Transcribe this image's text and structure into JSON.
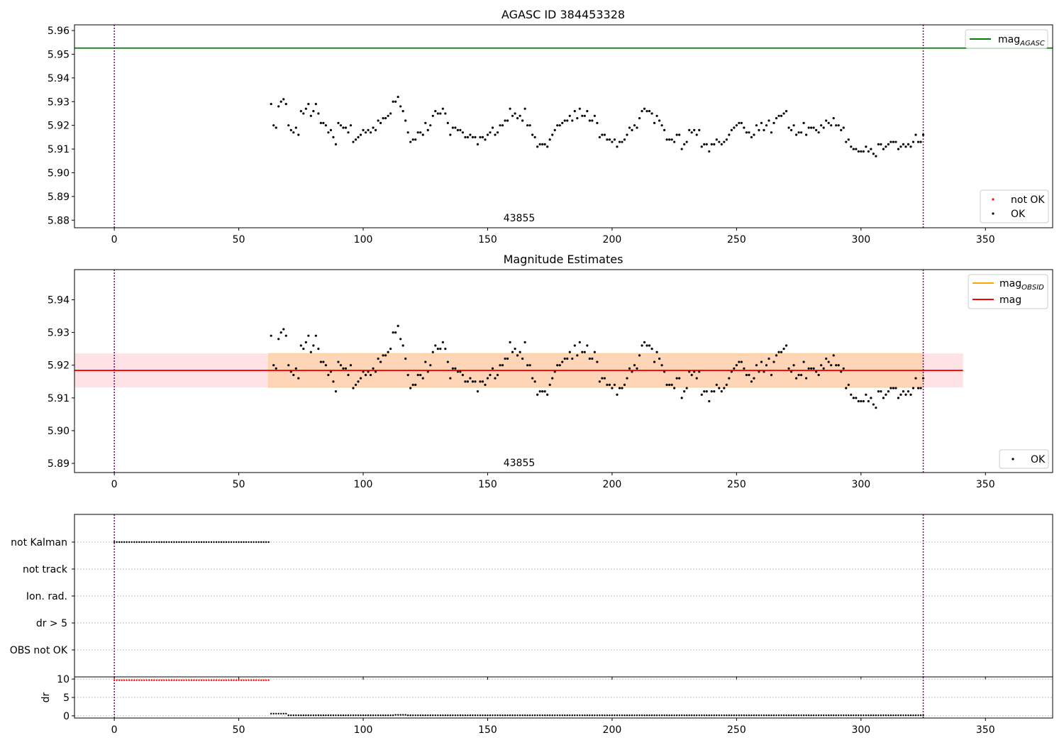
{
  "chart_data": [
    {
      "type": "scatter",
      "title": "AGASC ID 384453328",
      "xlim": [
        -16,
        377
      ],
      "ylim": [
        5.8768,
        5.9624
      ],
      "xticks": [
        0,
        50,
        100,
        150,
        200,
        250,
        300,
        350
      ],
      "xtick_labels": [
        "0",
        "50",
        "100",
        "150",
        "200",
        "250",
        "300",
        "350"
      ],
      "yticks": [
        5.88,
        5.89,
        5.9,
        5.91,
        5.92,
        5.93,
        5.94,
        5.95,
        5.96
      ],
      "ytick_labels": [
        "5.88",
        "5.89",
        "5.90",
        "5.91",
        "5.92",
        "5.93",
        "5.94",
        "5.95",
        "5.96"
      ],
      "vlines": [
        0,
        325
      ],
      "hline": {
        "value": 5.9526,
        "name": "mag",
        "subscript": "AGASC",
        "color": "#008000"
      },
      "annotation": {
        "text": "43855",
        "x": 162
      },
      "series": [
        {
          "name": "not OK",
          "color": "#ff0000",
          "values": []
        },
        {
          "name": "OK",
          "color": "#000000",
          "values": "ok_points"
        }
      ],
      "legends": {
        "line_legend": "top-right",
        "point_legend": "bottom-right"
      }
    },
    {
      "type": "scatter",
      "title": "Magnitude Estimates",
      "xlim": [
        -16,
        377
      ],
      "ylim": [
        5.8872,
        5.9492
      ],
      "xticks": [
        0,
        50,
        100,
        150,
        200,
        250,
        300,
        350
      ],
      "xtick_labels": [
        "0",
        "50",
        "100",
        "150",
        "200",
        "250",
        "300",
        "350"
      ],
      "yticks": [
        5.89,
        5.9,
        5.91,
        5.92,
        5.93,
        5.94
      ],
      "ytick_labels": [
        "5.89",
        "5.90",
        "5.91",
        "5.92",
        "5.93",
        "5.94"
      ],
      "vlines": [
        0,
        325
      ],
      "mag_obsid": {
        "name": "mag",
        "subscript": "OBSID",
        "color": "#ffa500",
        "value": 5.9184,
        "band": [
          5.9132,
          5.9236
        ],
        "x_range": [
          62,
          325
        ]
      },
      "mag": {
        "name": "mag",
        "color": "#ff0000",
        "value": 5.9184,
        "band": [
          5.9132,
          5.9236
        ],
        "x_range": [
          -16,
          341
        ]
      },
      "annotation": {
        "text": "43855",
        "x": 162
      },
      "series": [
        {
          "name": "OK",
          "color": "#000000",
          "values": "ok_points"
        }
      ],
      "legends": {
        "line_legend": "top-right",
        "point_legend": "bottom-right"
      }
    },
    {
      "type": "scatter",
      "title": "",
      "xlim": [
        -16,
        377
      ],
      "category_labels": [
        "not Kalman",
        "not track",
        "Ion. rad.",
        "dr > 5",
        "OBS not OK"
      ],
      "flagged": {
        "category": "not Kalman",
        "x_range": [
          0,
          62
        ]
      },
      "vlines": [
        0,
        325
      ]
    },
    {
      "type": "scatter",
      "title": "",
      "ylabel": "dr",
      "xlim": [
        -16,
        377
      ],
      "ylim": [
        -0.6,
        10.6
      ],
      "yticks": [
        0,
        5,
        10
      ],
      "ytick_labels": [
        "0",
        "5",
        "10"
      ],
      "xticks": [
        0,
        50,
        100,
        150,
        200,
        250,
        300,
        350
      ],
      "xtick_labels": [
        "0",
        "50",
        "100",
        "150",
        "200",
        "250",
        "300",
        "350"
      ],
      "vlines": [
        0,
        325
      ],
      "series": [
        {
          "name": "not OK",
          "color": "#ff0000",
          "x_range": [
            0,
            62
          ],
          "value": 9.7
        },
        {
          "name": "OK",
          "color": "#000000",
          "x_range": [
            62,
            325
          ]
        }
      ]
    }
  ],
  "ok_points": [
    [
      63,
      5.929
    ],
    [
      64,
      5.92
    ],
    [
      65,
      5.919
    ],
    [
      66,
      5.928
    ],
    [
      67,
      5.93
    ],
    [
      68,
      5.931
    ],
    [
      69,
      5.929
    ],
    [
      70,
      5.92
    ],
    [
      71,
      5.918
    ],
    [
      72,
      5.917
    ],
    [
      73,
      5.919
    ],
    [
      74,
      5.916
    ],
    [
      75,
      5.926
    ],
    [
      76,
      5.925
    ],
    [
      77,
      5.927
    ],
    [
      78,
      5.929
    ],
    [
      79,
      5.924
    ],
    [
      80,
      5.926
    ],
    [
      81,
      5.929
    ],
    [
      82,
      5.925
    ],
    [
      83,
      5.921
    ],
    [
      84,
      5.921
    ],
    [
      85,
      5.92
    ],
    [
      86,
      5.917
    ],
    [
      87,
      5.918
    ],
    [
      88,
      5.915
    ],
    [
      89,
      5.912
    ],
    [
      90,
      5.921
    ],
    [
      91,
      5.92
    ],
    [
      92,
      5.919
    ],
    [
      93,
      5.919
    ],
    [
      94,
      5.917
    ],
    [
      95,
      5.92
    ],
    [
      96,
      5.913
    ],
    [
      97,
      5.914
    ],
    [
      98,
      5.915
    ],
    [
      99,
      5.916
    ],
    [
      100,
      5.918
    ],
    [
      101,
      5.917
    ],
    [
      102,
      5.918
    ],
    [
      103,
      5.917
    ],
    [
      104,
      5.919
    ],
    [
      105,
      5.918
    ],
    [
      106,
      5.922
    ],
    [
      107,
      5.921
    ],
    [
      108,
      5.923
    ],
    [
      109,
      5.923
    ],
    [
      110,
      5.924
    ],
    [
      111,
      5.925
    ],
    [
      112,
      5.93
    ],
    [
      113,
      5.93
    ],
    [
      114,
      5.932
    ],
    [
      115,
      5.928
    ],
    [
      116,
      5.926
    ],
    [
      117,
      5.922
    ],
    [
      118,
      5.917
    ],
    [
      119,
      5.913
    ],
    [
      120,
      5.914
    ],
    [
      121,
      5.914
    ],
    [
      122,
      5.917
    ],
    [
      123,
      5.917
    ],
    [
      124,
      5.916
    ],
    [
      125,
      5.921
    ],
    [
      126,
      5.918
    ],
    [
      127,
      5.92
    ],
    [
      128,
      5.924
    ],
    [
      129,
      5.926
    ],
    [
      130,
      5.925
    ],
    [
      131,
      5.925
    ],
    [
      132,
      5.927
    ],
    [
      133,
      5.925
    ],
    [
      134,
      5.921
    ],
    [
      135,
      5.916
    ],
    [
      136,
      5.919
    ],
    [
      137,
      5.919
    ],
    [
      138,
      5.918
    ],
    [
      139,
      5.918
    ],
    [
      140,
      5.917
    ],
    [
      141,
      5.915
    ],
    [
      142,
      5.915
    ],
    [
      143,
      5.916
    ],
    [
      144,
      5.915
    ],
    [
      145,
      5.915
    ],
    [
      146,
      5.912
    ],
    [
      147,
      5.915
    ],
    [
      148,
      5.915
    ],
    [
      149,
      5.914
    ],
    [
      150,
      5.916
    ],
    [
      151,
      5.917
    ],
    [
      152,
      5.919
    ],
    [
      153,
      5.916
    ],
    [
      154,
      5.917
    ],
    [
      155,
      5.92
    ],
    [
      156,
      5.92
    ],
    [
      157,
      5.922
    ],
    [
      158,
      5.922
    ],
    [
      159,
      5.927
    ],
    [
      160,
      5.924
    ],
    [
      161,
      5.925
    ],
    [
      162,
      5.923
    ],
    [
      163,
      5.924
    ],
    [
      164,
      5.922
    ],
    [
      165,
      5.927
    ],
    [
      166,
      5.92
    ],
    [
      167,
      5.92
    ],
    [
      168,
      5.916
    ],
    [
      169,
      5.915
    ],
    [
      170,
      5.911
    ],
    [
      171,
      5.912
    ],
    [
      172,
      5.912
    ],
    [
      173,
      5.912
    ],
    [
      174,
      5.911
    ],
    [
      175,
      5.914
    ],
    [
      176,
      5.916
    ],
    [
      177,
      5.918
    ],
    [
      178,
      5.92
    ],
    [
      179,
      5.92
    ],
    [
      180,
      5.921
    ],
    [
      181,
      5.922
    ],
    [
      182,
      5.922
    ],
    [
      183,
      5.924
    ],
    [
      184,
      5.922
    ],
    [
      185,
      5.926
    ],
    [
      186,
      5.923
    ],
    [
      187,
      5.927
    ],
    [
      188,
      5.924
    ],
    [
      189,
      5.924
    ],
    [
      190,
      5.926
    ],
    [
      191,
      5.922
    ],
    [
      192,
      5.922
    ],
    [
      193,
      5.924
    ],
    [
      194,
      5.921
    ],
    [
      195,
      5.915
    ],
    [
      196,
      5.916
    ],
    [
      197,
      5.916
    ],
    [
      198,
      5.914
    ],
    [
      199,
      5.914
    ],
    [
      200,
      5.913
    ],
    [
      201,
      5.914
    ],
    [
      202,
      5.911
    ],
    [
      203,
      5.913
    ],
    [
      204,
      5.913
    ],
    [
      205,
      5.914
    ],
    [
      206,
      5.916
    ],
    [
      207,
      5.919
    ],
    [
      208,
      5.918
    ],
    [
      209,
      5.92
    ],
    [
      210,
      5.919
    ],
    [
      211,
      5.923
    ],
    [
      212,
      5.926
    ],
    [
      213,
      5.927
    ],
    [
      214,
      5.926
    ],
    [
      215,
      5.926
    ],
    [
      216,
      5.925
    ],
    [
      217,
      5.921
    ],
    [
      218,
      5.924
    ],
    [
      219,
      5.922
    ],
    [
      220,
      5.92
    ],
    [
      221,
      5.918
    ],
    [
      222,
      5.914
    ],
    [
      223,
      5.914
    ],
    [
      224,
      5.914
    ],
    [
      225,
      5.913
    ],
    [
      226,
      5.916
    ],
    [
      227,
      5.916
    ],
    [
      228,
      5.91
    ],
    [
      229,
      5.912
    ],
    [
      230,
      5.913
    ],
    [
      231,
      5.918
    ],
    [
      232,
      5.917
    ],
    [
      233,
      5.918
    ],
    [
      234,
      5.916
    ],
    [
      235,
      5.918
    ],
    [
      236,
      5.911
    ],
    [
      237,
      5.912
    ],
    [
      238,
      5.912
    ],
    [
      239,
      5.909
    ],
    [
      240,
      5.912
    ],
    [
      241,
      5.912
    ],
    [
      242,
      5.914
    ],
    [
      243,
      5.913
    ],
    [
      244,
      5.912
    ],
    [
      245,
      5.913
    ],
    [
      246,
      5.914
    ],
    [
      247,
      5.916
    ],
    [
      248,
      5.918
    ],
    [
      249,
      5.919
    ],
    [
      250,
      5.92
    ],
    [
      251,
      5.921
    ],
    [
      252,
      5.921
    ],
    [
      253,
      5.919
    ],
    [
      254,
      5.917
    ],
    [
      255,
      5.917
    ],
    [
      256,
      5.915
    ],
    [
      257,
      5.916
    ],
    [
      258,
      5.92
    ],
    [
      259,
      5.918
    ],
    [
      260,
      5.921
    ],
    [
      261,
      5.918
    ],
    [
      262,
      5.92
    ],
    [
      263,
      5.922
    ],
    [
      264,
      5.917
    ],
    [
      265,
      5.921
    ],
    [
      266,
      5.923
    ],
    [
      267,
      5.924
    ],
    [
      268,
      5.924
    ],
    [
      269,
      5.925
    ],
    [
      270,
      5.926
    ],
    [
      271,
      5.919
    ],
    [
      272,
      5.918
    ],
    [
      273,
      5.92
    ],
    [
      274,
      5.916
    ],
    [
      275,
      5.917
    ],
    [
      276,
      5.917
    ],
    [
      277,
      5.921
    ],
    [
      278,
      5.916
    ],
    [
      279,
      5.919
    ],
    [
      280,
      5.919
    ],
    [
      281,
      5.919
    ],
    [
      282,
      5.918
    ],
    [
      283,
      5.917
    ],
    [
      284,
      5.92
    ],
    [
      285,
      5.919
    ],
    [
      286,
      5.922
    ],
    [
      287,
      5.921
    ],
    [
      288,
      5.92
    ],
    [
      289,
      5.923
    ],
    [
      290,
      5.92
    ],
    [
      291,
      5.92
    ],
    [
      292,
      5.918
    ],
    [
      293,
      5.919
    ],
    [
      294,
      5.913
    ],
    [
      295,
      5.914
    ],
    [
      296,
      5.911
    ],
    [
      297,
      5.91
    ],
    [
      298,
      5.91
    ],
    [
      299,
      5.909
    ],
    [
      300,
      5.909
    ],
    [
      301,
      5.909
    ],
    [
      302,
      5.911
    ],
    [
      303,
      5.909
    ],
    [
      304,
      5.91
    ],
    [
      305,
      5.908
    ],
    [
      306,
      5.907
    ],
    [
      307,
      5.912
    ],
    [
      308,
      5.912
    ],
    [
      309,
      5.91
    ],
    [
      310,
      5.911
    ],
    [
      311,
      5.912
    ],
    [
      312,
      5.913
    ],
    [
      313,
      5.913
    ],
    [
      314,
      5.913
    ],
    [
      315,
      5.91
    ],
    [
      316,
      5.911
    ],
    [
      317,
      5.912
    ],
    [
      318,
      5.911
    ],
    [
      319,
      5.912
    ],
    [
      320,
      5.911
    ],
    [
      321,
      5.913
    ],
    [
      322,
      5.916
    ],
    [
      323,
      5.913
    ],
    [
      324,
      5.913
    ],
    [
      325,
      5.916
    ]
  ]
}
